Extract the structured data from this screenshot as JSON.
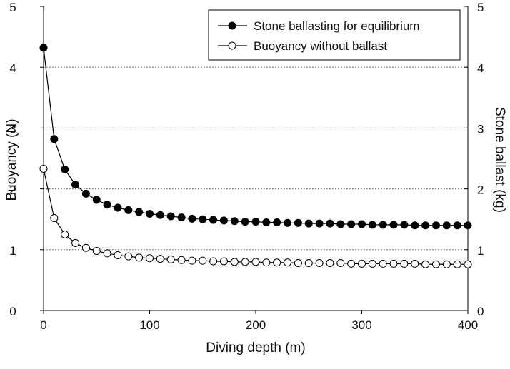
{
  "chart_data": {
    "type": "line",
    "xlabel": "Diving depth (m)",
    "ylabel": "Buoyancy (N)",
    "y2label": "Stone ballast (kg)",
    "xlim": [
      0,
      400
    ],
    "ylim": [
      0,
      5
    ],
    "y2lim": [
      0,
      5
    ],
    "xticks": [
      "0",
      "100",
      "200",
      "300",
      "400"
    ],
    "yticks": [
      "0",
      "1",
      "2",
      "3",
      "4",
      "5"
    ],
    "y2ticks": [
      "0",
      "1",
      "2",
      "3",
      "4",
      "5"
    ],
    "grid": "horizontal dotted",
    "legend_position": "top-right",
    "x": [
      0,
      10,
      20,
      30,
      40,
      50,
      60,
      70,
      80,
      90,
      100,
      110,
      120,
      130,
      140,
      150,
      160,
      170,
      180,
      190,
      200,
      210,
      220,
      230,
      240,
      250,
      260,
      270,
      280,
      290,
      300,
      310,
      320,
      330,
      340,
      350,
      360,
      370,
      380,
      390,
      400
    ],
    "series": [
      {
        "name": "Stone ballasting for equilibrium",
        "marker": "filled-circle",
        "color": "#000000",
        "values": [
          4.32,
          2.82,
          2.32,
          2.07,
          1.92,
          1.82,
          1.74,
          1.69,
          1.65,
          1.62,
          1.59,
          1.57,
          1.55,
          1.53,
          1.51,
          1.5,
          1.49,
          1.48,
          1.47,
          1.46,
          1.46,
          1.45,
          1.45,
          1.44,
          1.44,
          1.43,
          1.43,
          1.43,
          1.42,
          1.42,
          1.42,
          1.41,
          1.41,
          1.41,
          1.41,
          1.4,
          1.4,
          1.4,
          1.4,
          1.4,
          1.4
        ]
      },
      {
        "name": "Buoyancy without ballast",
        "marker": "open-circle",
        "color": "#000000",
        "values": [
          2.33,
          1.52,
          1.25,
          1.11,
          1.03,
          0.98,
          0.94,
          0.91,
          0.89,
          0.87,
          0.86,
          0.85,
          0.84,
          0.83,
          0.82,
          0.82,
          0.81,
          0.81,
          0.8,
          0.8,
          0.8,
          0.79,
          0.79,
          0.79,
          0.78,
          0.78,
          0.78,
          0.78,
          0.78,
          0.77,
          0.77,
          0.77,
          0.77,
          0.77,
          0.77,
          0.77,
          0.76,
          0.76,
          0.76,
          0.76,
          0.76
        ]
      }
    ]
  }
}
